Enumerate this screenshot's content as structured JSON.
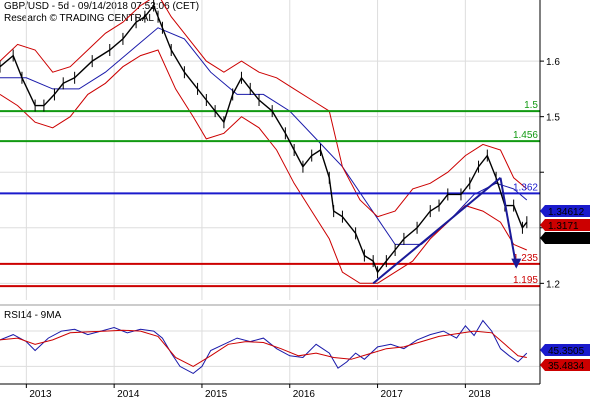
{
  "header": {
    "title": "GBP/USD - 5d - 09/14/2018 07:53:06 (CET)",
    "credit": "Research © TRADING CENTRAL"
  },
  "rsi_label": "RSI14 - 9MA",
  "colors": {
    "price": "#000000",
    "bollinger": "#cc0000",
    "moving_average": "#1a1aaa",
    "support": "#cc0000",
    "resistance": "#119911",
    "pivot": "#1a1acc",
    "trend": "#1a1a99",
    "rsi": "#1a1aaa",
    "rsi_ma": "#cc0000",
    "grid": "#dddddd"
  },
  "chart_data": [
    {
      "type": "line",
      "title": "GBP/USD - 5d",
      "x_ticks": [
        "2013",
        "2014",
        "2015",
        "2016",
        "2017",
        "2018"
      ],
      "y_ticks": [
        1.6,
        1.5,
        1.4,
        1.3,
        1.2
      ],
      "y_tick_labels": [
        "1.6",
        "1.5",
        "",
        "",
        "1.2"
      ],
      "ylim": [
        1.17,
        1.71
      ],
      "xlim": [
        2012.7,
        2018.85
      ],
      "grid": true,
      "series": [
        {
          "role": "price",
          "x": [
            2012.7,
            2012.85,
            2012.95,
            2013.1,
            2013.2,
            2013.32,
            2013.42,
            2013.55,
            2013.75,
            2013.95,
            2014.1,
            2014.25,
            2014.35,
            2014.45,
            2014.5,
            2014.55,
            2014.65,
            2014.8,
            2014.95,
            2015.05,
            2015.15,
            2015.25,
            2015.35,
            2015.45,
            2015.55,
            2015.65,
            2015.8,
            2015.95,
            2016.05,
            2016.15,
            2016.25,
            2016.35,
            2016.45,
            2016.5,
            2016.6,
            2016.75,
            2016.85,
            2016.95,
            2017.0,
            2017.1,
            2017.2,
            2017.3,
            2017.45,
            2017.6,
            2017.7,
            2017.8,
            2017.95,
            2018.05,
            2018.15,
            2018.25,
            2018.35,
            2018.45,
            2018.55,
            2018.65,
            2018.7
          ],
          "values": [
            1.59,
            1.61,
            1.57,
            1.52,
            1.52,
            1.54,
            1.56,
            1.57,
            1.6,
            1.62,
            1.64,
            1.67,
            1.68,
            1.7,
            1.68,
            1.66,
            1.62,
            1.58,
            1.55,
            1.53,
            1.51,
            1.49,
            1.54,
            1.57,
            1.55,
            1.53,
            1.51,
            1.47,
            1.44,
            1.41,
            1.43,
            1.44,
            1.39,
            1.33,
            1.32,
            1.29,
            1.25,
            1.24,
            1.22,
            1.24,
            1.26,
            1.28,
            1.3,
            1.33,
            1.34,
            1.36,
            1.36,
            1.38,
            1.41,
            1.43,
            1.39,
            1.34,
            1.34,
            1.3,
            1.31
          ]
        },
        {
          "role": "moving_average",
          "x": [
            2012.7,
            2013.0,
            2013.3,
            2013.6,
            2013.9,
            2014.2,
            2014.5,
            2014.8,
            2015.1,
            2015.4,
            2015.7,
            2016.0,
            2016.3,
            2016.6,
            2016.9,
            2017.2,
            2017.5,
            2017.8,
            2018.1,
            2018.35,
            2018.55,
            2018.7
          ],
          "values": [
            1.57,
            1.57,
            1.55,
            1.55,
            1.58,
            1.62,
            1.66,
            1.64,
            1.58,
            1.54,
            1.54,
            1.51,
            1.46,
            1.41,
            1.34,
            1.27,
            1.27,
            1.31,
            1.36,
            1.38,
            1.37,
            1.35
          ]
        },
        {
          "role": "bollinger_upper",
          "x": [
            2012.7,
            2012.9,
            2013.1,
            2013.3,
            2013.5,
            2013.7,
            2013.9,
            2014.1,
            2014.3,
            2014.5,
            2014.65,
            2014.85,
            2015.05,
            2015.25,
            2015.45,
            2015.65,
            2015.85,
            2016.05,
            2016.25,
            2016.45,
            2016.6,
            2016.8,
            2017.0,
            2017.2,
            2017.4,
            2017.6,
            2017.8,
            2018.0,
            2018.2,
            2018.4,
            2018.55,
            2018.7
          ],
          "values": [
            1.6,
            1.63,
            1.62,
            1.58,
            1.59,
            1.62,
            1.65,
            1.67,
            1.7,
            1.72,
            1.68,
            1.64,
            1.6,
            1.58,
            1.6,
            1.58,
            1.57,
            1.55,
            1.53,
            1.51,
            1.41,
            1.35,
            1.32,
            1.33,
            1.37,
            1.38,
            1.4,
            1.43,
            1.45,
            1.44,
            1.39,
            1.37
          ]
        },
        {
          "role": "bollinger_lower",
          "x": [
            2012.7,
            2012.9,
            2013.1,
            2013.3,
            2013.5,
            2013.7,
            2013.9,
            2014.1,
            2014.3,
            2014.5,
            2014.7,
            2014.9,
            2015.05,
            2015.25,
            2015.45,
            2015.65,
            2015.85,
            2016.05,
            2016.25,
            2016.45,
            2016.6,
            2016.8,
            2017.0,
            2017.2,
            2017.4,
            2017.6,
            2017.8,
            2018.0,
            2018.2,
            2018.4,
            2018.55,
            2018.7
          ],
          "values": [
            1.54,
            1.52,
            1.49,
            1.48,
            1.5,
            1.54,
            1.56,
            1.59,
            1.61,
            1.62,
            1.55,
            1.5,
            1.46,
            1.47,
            1.5,
            1.48,
            1.44,
            1.38,
            1.33,
            1.28,
            1.22,
            1.2,
            1.2,
            1.22,
            1.24,
            1.28,
            1.31,
            1.34,
            1.33,
            1.31,
            1.27,
            1.26
          ]
        }
      ],
      "levels": [
        {
          "role": "resistance",
          "value": 1.51,
          "label": "1.5",
          "color": "#119911"
        },
        {
          "role": "resistance",
          "value": 1.456,
          "label": "1.456",
          "color": "#119911"
        },
        {
          "role": "pivot",
          "value": 1.362,
          "label": "1.362",
          "color": "#1a1acc"
        },
        {
          "role": "support",
          "value": 1.235,
          "label": "1.235",
          "color": "#cc0000"
        },
        {
          "role": "support",
          "value": 1.195,
          "label": "1.195",
          "color": "#cc0000"
        }
      ],
      "trendlines": [
        {
          "x": [
            2016.95,
            2018.4
          ],
          "values": [
            1.2,
            1.39
          ]
        },
        {
          "x": [
            2018.4,
            2018.58
          ],
          "values": [
            1.39,
            1.23
          ]
        }
      ],
      "price_badges": [
        {
          "label": "1.34612",
          "value": 1.346,
          "color": "#1a1acc"
        },
        {
          "label": "1.3171",
          "value": 1.322,
          "color": "#cc0000"
        },
        {
          "label": "1.3112",
          "value": 1.305,
          "color": "#000000"
        }
      ]
    },
    {
      "type": "line",
      "title": "RSI14 - 9MA",
      "ylim": [
        10,
        95
      ],
      "y_ticks": [
        30,
        70
      ],
      "grid": true,
      "series": [
        {
          "role": "rsi",
          "x": [
            2012.7,
            2012.85,
            2013.0,
            2013.1,
            2013.25,
            2013.4,
            2013.55,
            2013.7,
            2013.85,
            2014.0,
            2014.15,
            2014.3,
            2014.45,
            2014.55,
            2014.65,
            2014.75,
            2014.9,
            2015.0,
            2015.1,
            2015.25,
            2015.4,
            2015.55,
            2015.7,
            2015.85,
            2016.0,
            2016.15,
            2016.3,
            2016.45,
            2016.55,
            2016.65,
            2016.75,
            2016.85,
            2017.0,
            2017.15,
            2017.3,
            2017.45,
            2017.6,
            2017.75,
            2017.9,
            2018.0,
            2018.1,
            2018.2,
            2018.3,
            2018.4,
            2018.5,
            2018.6,
            2018.7
          ],
          "values": [
            60,
            66,
            58,
            48,
            62,
            70,
            72,
            66,
            70,
            74,
            68,
            72,
            70,
            62,
            45,
            30,
            22,
            30,
            48,
            55,
            62,
            58,
            62,
            50,
            42,
            40,
            55,
            45,
            28,
            35,
            45,
            38,
            52,
            55,
            50,
            60,
            66,
            70,
            62,
            76,
            65,
            82,
            70,
            50,
            42,
            35,
            45
          ]
        },
        {
          "role": "rsi_ma",
          "x": [
            2012.7,
            2012.9,
            2013.1,
            2013.3,
            2013.5,
            2013.7,
            2013.9,
            2014.1,
            2014.3,
            2014.5,
            2014.7,
            2014.9,
            2015.1,
            2015.3,
            2015.5,
            2015.7,
            2015.9,
            2016.1,
            2016.3,
            2016.5,
            2016.7,
            2016.9,
            2017.1,
            2017.3,
            2017.5,
            2017.7,
            2017.9,
            2018.1,
            2018.3,
            2018.45,
            2018.6,
            2018.7
          ],
          "values": [
            60,
            62,
            55,
            60,
            68,
            69,
            70,
            71,
            70,
            64,
            40,
            30,
            42,
            55,
            58,
            57,
            50,
            42,
            45,
            40,
            38,
            44,
            50,
            52,
            58,
            64,
            67,
            70,
            68,
            55,
            42,
            40
          ]
        }
      ],
      "rsi_badges": [
        {
          "label": "45.3505",
          "value": 45.35,
          "color": "#1a1acc"
        },
        {
          "label": "35.4834",
          "value": 35.48,
          "color": "#cc0000"
        }
      ]
    }
  ]
}
